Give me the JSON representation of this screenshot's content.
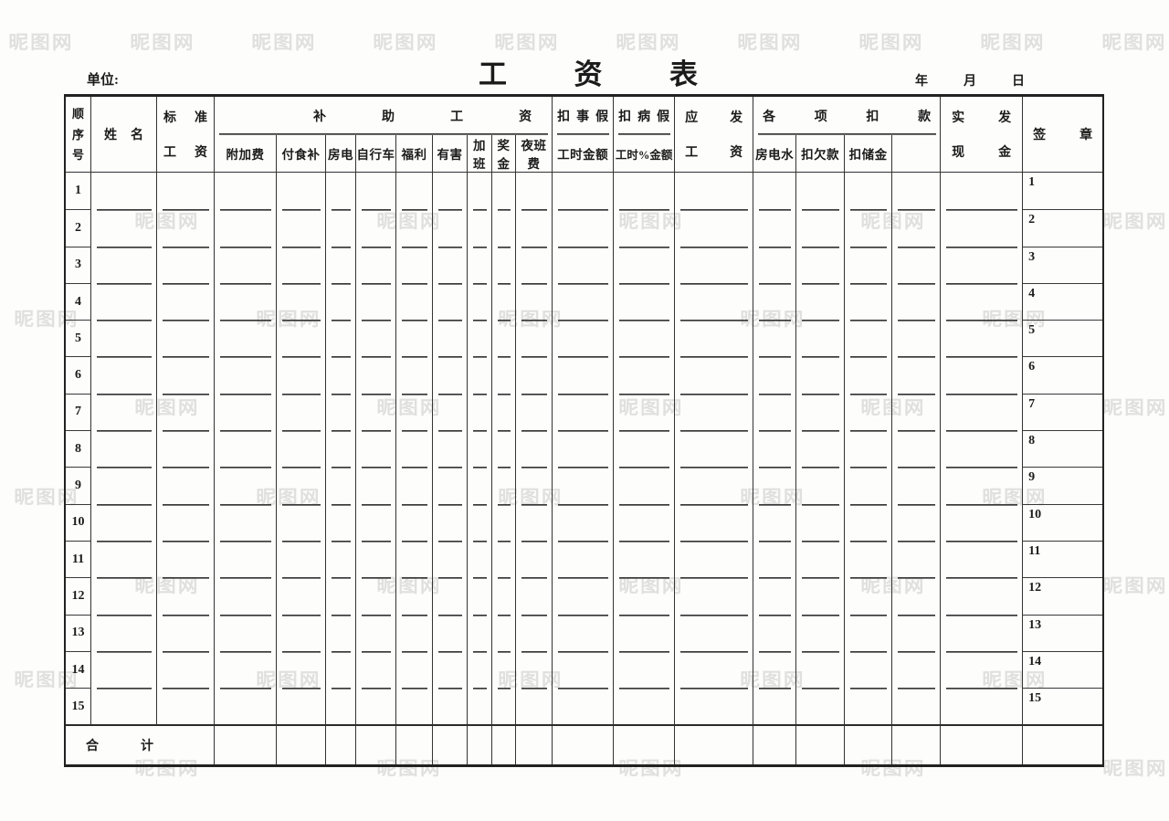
{
  "page": {
    "unit_label": "单位:",
    "title": "工资表",
    "date_label": "年月日"
  },
  "watermark": {
    "text": "昵图网"
  },
  "table": {
    "header": {
      "seq": "顺序号",
      "name": "姓名",
      "std_wage_line1": "标准",
      "std_wage_line2": "工资",
      "subsidy_group": "补助工资",
      "subsidy_cols": [
        "附加费",
        "付食补",
        "房电",
        "自行车",
        "福利",
        "有害",
        "加班",
        "奖金",
        "夜班费"
      ],
      "personal_leave_group": "扣事假",
      "personal_leave_sub": "工时金额",
      "sick_leave_group": "扣病假",
      "sick_leave_sub": "工时%金额",
      "payable_line1": "应发",
      "payable_line2": "工资",
      "deduction_group": "各项扣款",
      "deduction_cols": [
        "房电水",
        "扣欠款",
        "扣储金",
        ""
      ],
      "net_line1": "实发",
      "net_line2": "现金",
      "signature": "签章"
    },
    "rows": [
      "1",
      "2",
      "3",
      "4",
      "5",
      "6",
      "7",
      "8",
      "9",
      "10",
      "11",
      "12",
      "13",
      "14",
      "15"
    ],
    "total_label": "合计"
  }
}
